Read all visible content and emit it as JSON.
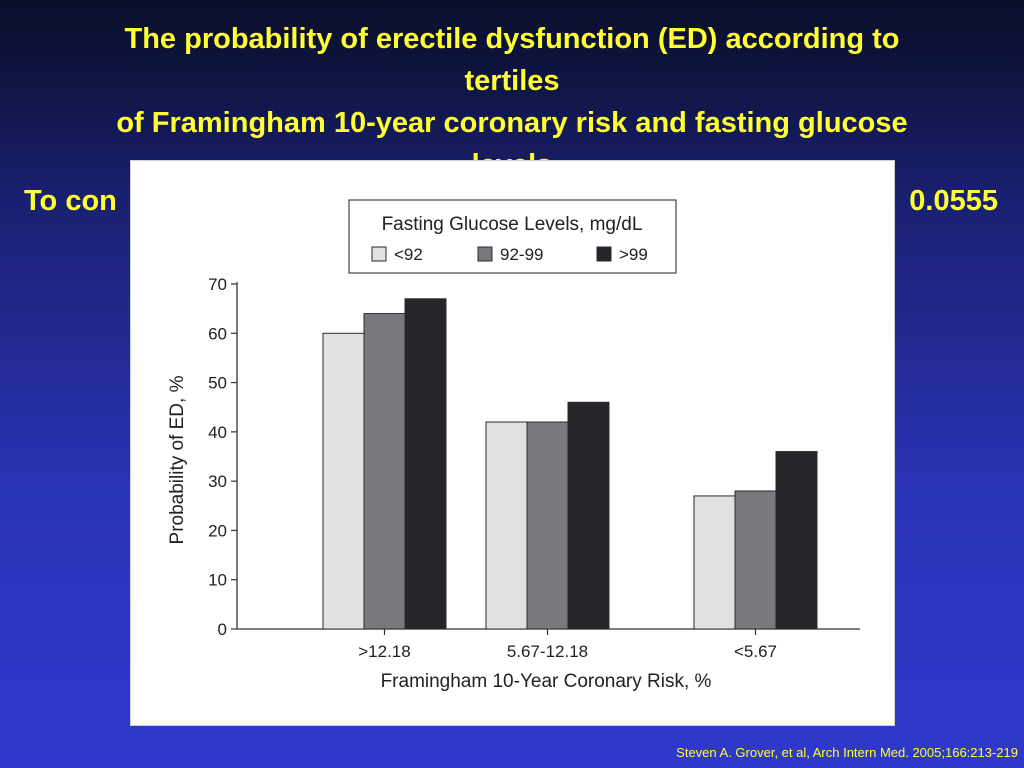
{
  "slide": {
    "title_lines": [
      "The probability of erectile dysfunction (ED) according to",
      "tertiles",
      "of Framingham 10-year coronary risk and fasting glucose",
      "levels"
    ],
    "subline_left": "To con",
    "subline_right": "0.0555",
    "citation": "Steven A. Grover, et al, Arch Intern Med. 2005;166:213-219"
  },
  "chart_data": {
    "type": "bar",
    "categories": [
      ">12.18",
      "5.67-12.18",
      "<5.67"
    ],
    "series": [
      {
        "name": "<92",
        "values": [
          60,
          42,
          27
        ],
        "color": "#e0e1e3"
      },
      {
        "name": "92-99",
        "values": [
          64,
          42,
          28
        ],
        "color": "#78797d"
      },
      {
        "name": ">99",
        "values": [
          67,
          46,
          36
        ],
        "color": "#26262a"
      }
    ],
    "xlabel": "Framingham 10-Year Coronary Risk, %",
    "ylabel": "Probability of ED, %",
    "ylim": [
      0,
      70
    ],
    "yticks": [
      0,
      10,
      20,
      30,
      40,
      50,
      60,
      70
    ],
    "legend_title": "Fasting Glucose Levels, mg/dL",
    "legend_position": "top",
    "grid": false
  }
}
